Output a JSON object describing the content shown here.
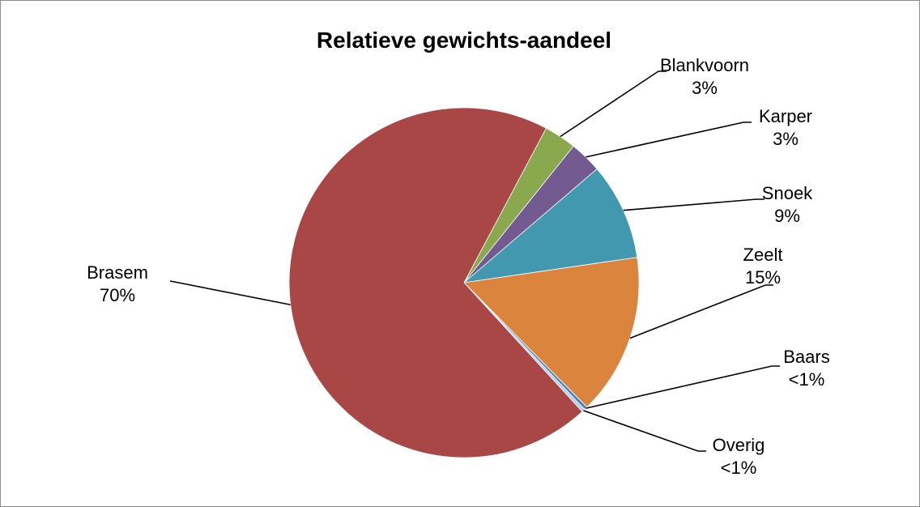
{
  "chart_data": {
    "type": "pie",
    "title": "Relatieve gewichts-aandeel",
    "slices": [
      {
        "name": "Blankvoorn",
        "value": 3,
        "label": "3%",
        "color": "#8aa94f"
      },
      {
        "name": "Karper",
        "value": 3,
        "label": "3%",
        "color": "#735a91"
      },
      {
        "name": "Snoek",
        "value": 9,
        "label": "9%",
        "color": "#4298ae"
      },
      {
        "name": "Zeelt",
        "value": 15,
        "label": "15%",
        "color": "#db843d"
      },
      {
        "name": "Baars",
        "value": 0.3,
        "label": "<1%",
        "color": "#4a81c4"
      },
      {
        "name": "Overig",
        "value": 0.3,
        "label": "<1%",
        "color": "#b9cde5"
      },
      {
        "name": "Brasem",
        "value": 70,
        "label": "70%",
        "color": "#a84745"
      }
    ],
    "start_angle_deg": 28,
    "direction": "clockwise",
    "legend": "none"
  }
}
